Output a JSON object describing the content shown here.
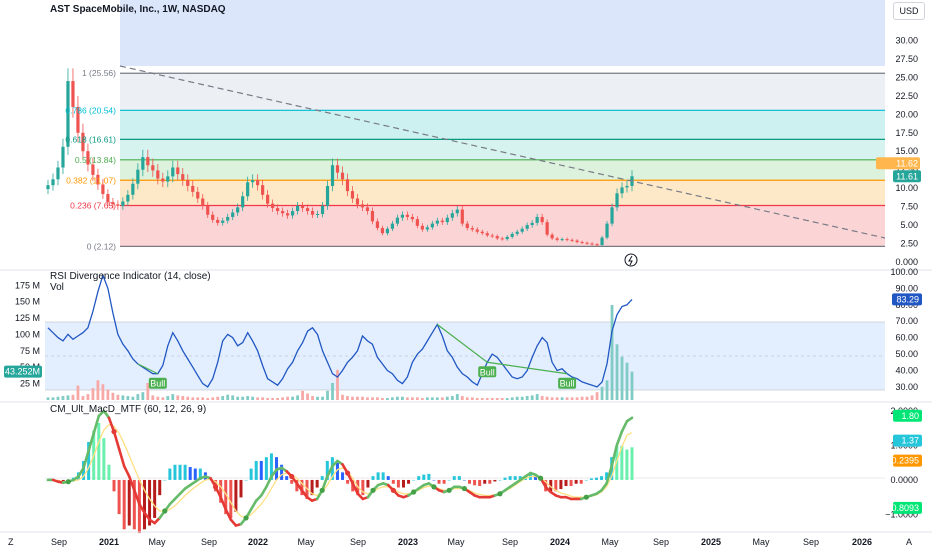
{
  "header": {
    "title": "AST SpaceMobile, Inc., 1W, NASDAQ",
    "currency": "USD"
  },
  "colors": {
    "up": "#26a69a",
    "down": "#ef5350",
    "rsi_line": "#2157c3",
    "fib_0": "#787b86",
    "fib_0236": "#f23645",
    "fib_0382": "#ff9800",
    "fib_05": "#4caf50",
    "fib_0618": "#089981",
    "fib_0786": "#00bcd4",
    "fib_1": "#787b86"
  },
  "chart_data": [
    {
      "type": "candlestick",
      "name": "price",
      "y_ticks": [
        "0.000",
        "2.50",
        "5.00",
        "7.50",
        "10.00",
        "12.50",
        "15.00",
        "17.50",
        "20.00",
        "22.50",
        "25.00",
        "27.50",
        "30.00"
      ],
      "ylim": [
        0,
        32.5
      ],
      "last_price": "11.61",
      "last_price_alt": "11.62",
      "fib_levels": [
        {
          "label": "1 (25.56)",
          "value": 25.56
        },
        {
          "label": "0.786 (20.54)",
          "value": 20.54
        },
        {
          "label": "0.618 (16.61)",
          "value": 16.61
        },
        {
          "label": "0.5 (13.84)",
          "value": 13.84
        },
        {
          "label": "0.382 (11.07)",
          "value": 11.07
        },
        {
          "label": "0.236 (7.65)",
          "value": 7.65
        },
        {
          "label": "0 (2.12)",
          "value": 2.12
        }
      ],
      "close_series": [
        10.4,
        11.2,
        12.8,
        15.6,
        24.5,
        21,
        17.5,
        15,
        13.2,
        11.8,
        10.5,
        9.2,
        8.1,
        7.8,
        7.6,
        8.2,
        9.1,
        10.6,
        12.5,
        14.2,
        13.1,
        12.4,
        11.3,
        10.9,
        11.6,
        12.8,
        11.9,
        11.1,
        10.3,
        9.5,
        8.6,
        7.6,
        6.4,
        5.7,
        5.3,
        5.6,
        6.1,
        6.7,
        7.4,
        8.9,
        10.8,
        11.1,
        10.4,
        9.1,
        7.9,
        7.3,
        6.9,
        6.6,
        6.3,
        6.9,
        7.6,
        7.3,
        6.9,
        6.4,
        6.5,
        7.6,
        10.3,
        13.1,
        12.1,
        11.2,
        9.6,
        8.6,
        7.8,
        7.4,
        6.9,
        5.5,
        4.6,
        3.9,
        4.5,
        5.2,
        6,
        6.4,
        6.1,
        5.8,
        4.9,
        4.4,
        4.7,
        5.2,
        5.6,
        5.4,
        6,
        6.6,
        7.1,
        5.2,
        4.6,
        4.4,
        4.1,
        3.9,
        3.6,
        3.5,
        3.2,
        3.1,
        3.4,
        3.8,
        4.1,
        4.5,
        5,
        5.3,
        6.1,
        5.4,
        3.7,
        3.2,
        3,
        3.1,
        3,
        2.9,
        2.7,
        2.6,
        2.5,
        2.4,
        2.3,
        3.3,
        5.2,
        7.4,
        9.3,
        10.1,
        10.3,
        11.61
      ],
      "x_ticks": [
        {
          "label": "Sep",
          "x": 59
        },
        {
          "label": "2021",
          "x": 109
        },
        {
          "label": "May",
          "x": 157
        },
        {
          "label": "Sep",
          "x": 209
        },
        {
          "label": "2022",
          "x": 258
        },
        {
          "label": "May",
          "x": 306
        },
        {
          "label": "Sep",
          "x": 358
        },
        {
          "label": "2023",
          "x": 408
        },
        {
          "label": "May",
          "x": 456
        },
        {
          "label": "Sep",
          "x": 510
        },
        {
          "label": "2024",
          "x": 560
        },
        {
          "label": "May",
          "x": 610
        },
        {
          "label": "Sep",
          "x": 661
        },
        {
          "label": "2025",
          "x": 711
        },
        {
          "label": "May",
          "x": 761
        },
        {
          "label": "Sep",
          "x": 811
        },
        {
          "label": "2026",
          "x": 862
        }
      ]
    },
    {
      "type": "line",
      "name": "RSI Divergence Indicator (14, close)",
      "title": "RSI Divergence Indicator (14, close)",
      "y_ticks": [
        "30.00",
        "40.00",
        "50.00",
        "60.00",
        "70.00",
        "80.00",
        "90.00",
        "100.00"
      ],
      "ylim": [
        22,
        100
      ],
      "band": [
        30,
        70
      ],
      "last_value": "83.29",
      "series": [
        66,
        63,
        60,
        58,
        62,
        59,
        61,
        63,
        66,
        76,
        88,
        98,
        90,
        75,
        62,
        56,
        52,
        47,
        44,
        42,
        40,
        38,
        38,
        43,
        55,
        63,
        58,
        52,
        47,
        42,
        37,
        32,
        30,
        35,
        45,
        58,
        62,
        60,
        55,
        57,
        63,
        58,
        52,
        43,
        35,
        33,
        31,
        35,
        41,
        45,
        52,
        57,
        64,
        66,
        62,
        52,
        45,
        38,
        36,
        40,
        45,
        48,
        52,
        61,
        58,
        56,
        48,
        44,
        40,
        38,
        34,
        32,
        36,
        45,
        50,
        53,
        58,
        63,
        68,
        61,
        52,
        48,
        42,
        38,
        36,
        33,
        31,
        38,
        45,
        50,
        48,
        44,
        40,
        36,
        35,
        36,
        40,
        48,
        55,
        60,
        57,
        45,
        40,
        41,
        38,
        36,
        35,
        33,
        32,
        31,
        30,
        33,
        44,
        64,
        74,
        79,
        80,
        83.29
      ],
      "bull_labels": [
        "Bull",
        "Bull",
        "Bull"
      ],
      "volume": {
        "title": "Vol",
        "y_ticks": [
          "25 M",
          "50 M",
          "75 M",
          "100 M",
          "125 M",
          "150 M",
          "175 M"
        ],
        "ylim": [
          0,
          180
        ],
        "last_value": "43.252M",
        "series": [
          4,
          4,
          5,
          6,
          7,
          8,
          7,
          6,
          9,
          18,
          30,
          24,
          16,
          11,
          8,
          7,
          6,
          5,
          9,
          12,
          8,
          7,
          5,
          4,
          6,
          9,
          7,
          6,
          5,
          4,
          4,
          4,
          3,
          4,
          5,
          6,
          8,
          7,
          5,
          5,
          6,
          5,
          4,
          4,
          3,
          3,
          3,
          4,
          5,
          5,
          7,
          14,
          10,
          6,
          5,
          5,
          14,
          26,
          12,
          8,
          6,
          5,
          5,
          5,
          4,
          4,
          4,
          3,
          3,
          4,
          5,
          5,
          4,
          4,
          4,
          3,
          4,
          4,
          4,
          4,
          5,
          6,
          9,
          6,
          4,
          4,
          3,
          3,
          3,
          3,
          3,
          3,
          3,
          4,
          5,
          5,
          6,
          7,
          9,
          6,
          5,
          4,
          4,
          4,
          4,
          4,
          4,
          5,
          5,
          7,
          12,
          20,
          30,
          45,
          60,
          56,
          50,
          43.252
        ],
        "peaks": [
          {
            "i": 6,
            "v": 22
          },
          {
            "i": 20,
            "v": 26
          },
          {
            "i": 58,
            "v": 46
          },
          {
            "i": 113,
            "v": 145
          },
          {
            "i": 114,
            "v": 85
          },
          {
            "i": 115,
            "v": 66
          },
          {
            "i": 116,
            "v": 57
          }
        ]
      }
    },
    {
      "type": "histogram",
      "name": "CM_Ult_MacD_MTF (60, 12, 26, 9)",
      "title": "CM_Ult_MacD_MTF (60, 12, 26, 9)",
      "y_ticks": [
        "−1.0000",
        "0.0000",
        "1.0000",
        "2.0000"
      ],
      "ylim": [
        -1.45,
        2.2
      ],
      "last_labels": [
        "1.80",
        "1.37",
        "0.2395",
        "−0.8093"
      ],
      "macd": [
        0,
        0,
        -0.05,
        -0.08,
        -0.05,
        0,
        0.1,
        0.35,
        0.85,
        1.35,
        1.85,
        2.0,
        1.8,
        1.4,
        0.9,
        0.4,
        0.1,
        -0.3,
        -0.7,
        -0.95,
        -1.15,
        -1.25,
        -1.1,
        -0.9,
        -0.7,
        -0.55,
        -0.4,
        -0.25,
        -0.15,
        -0.05,
        0.05,
        0.1,
        0.05,
        -0.2,
        -0.5,
        -0.85,
        -1.15,
        -1.32,
        -1.28,
        -1.1,
        -0.85,
        -0.6,
        -0.45,
        -0.2,
        0.1,
        0.3,
        0.35,
        0.25,
        0.1,
        -0.1,
        -0.3,
        -0.5,
        -0.6,
        -0.55,
        -0.3,
        0.1,
        0.4,
        0.55,
        0.45,
        0.2,
        -0.1,
        -0.4,
        -0.55,
        -0.5,
        -0.3,
        -0.15,
        -0.1,
        -0.15,
        -0.3,
        -0.45,
        -0.5,
        -0.45,
        -0.35,
        -0.25,
        -0.15,
        -0.1,
        -0.2,
        -0.3,
        -0.35,
        -0.3,
        -0.2,
        -0.2,
        -0.25,
        -0.35,
        -0.45,
        -0.5,
        -0.5,
        -0.5,
        -0.45,
        -0.4,
        -0.3,
        -0.2,
        -0.1,
        0.0,
        0.1,
        0.2,
        0.15,
        0.05,
        -0.2,
        -0.35,
        -0.45,
        -0.5,
        -0.5,
        -0.55,
        -0.55,
        -0.55,
        -0.5,
        -0.45,
        -0.4,
        -0.3,
        -0.1,
        0.4,
        1.0,
        1.4,
        1.7,
        1.8
      ],
      "signal": [
        0,
        0,
        -0.02,
        -0.05,
        -0.05,
        -0.03,
        0.0,
        0.1,
        0.35,
        0.7,
        1.1,
        1.45,
        1.6,
        1.55,
        1.35,
        1.05,
        0.7,
        0.35,
        0.0,
        -0.3,
        -0.55,
        -0.75,
        -0.9,
        -0.9,
        -0.85,
        -0.75,
        -0.6,
        -0.45,
        -0.32,
        -0.2,
        -0.1,
        0.0,
        0.02,
        -0.05,
        -0.2,
        -0.4,
        -0.65,
        -0.9,
        -1.05,
        -1.1,
        -1.0,
        -0.85,
        -0.7,
        -0.5,
        -0.25,
        0.0,
        0.15,
        0.2,
        0.15,
        0.05,
        -0.1,
        -0.25,
        -0.4,
        -0.45,
        -0.35,
        -0.15,
        0.1,
        0.3,
        0.35,
        0.25,
        0.05,
        -0.2,
        -0.35,
        -0.4,
        -0.35,
        -0.25,
        -0.2,
        -0.2,
        -0.25,
        -0.35,
        -0.4,
        -0.4,
        -0.35,
        -0.3,
        -0.22,
        -0.18,
        -0.2,
        -0.25,
        -0.3,
        -0.3,
        -0.25,
        -0.25,
        -0.25,
        -0.3,
        -0.38,
        -0.42,
        -0.45,
        -0.45,
        -0.43,
        -0.4,
        -0.33,
        -0.25,
        -0.15,
        -0.05,
        0.05,
        0.1,
        0.1,
        0.05,
        -0.05,
        -0.2,
        -0.3,
        -0.38,
        -0.42,
        -0.47,
        -0.5,
        -0.5,
        -0.5,
        -0.47,
        -0.43,
        -0.35,
        -0.2,
        0.1,
        0.55,
        0.95,
        1.3,
        1.37
      ]
    }
  ]
}
